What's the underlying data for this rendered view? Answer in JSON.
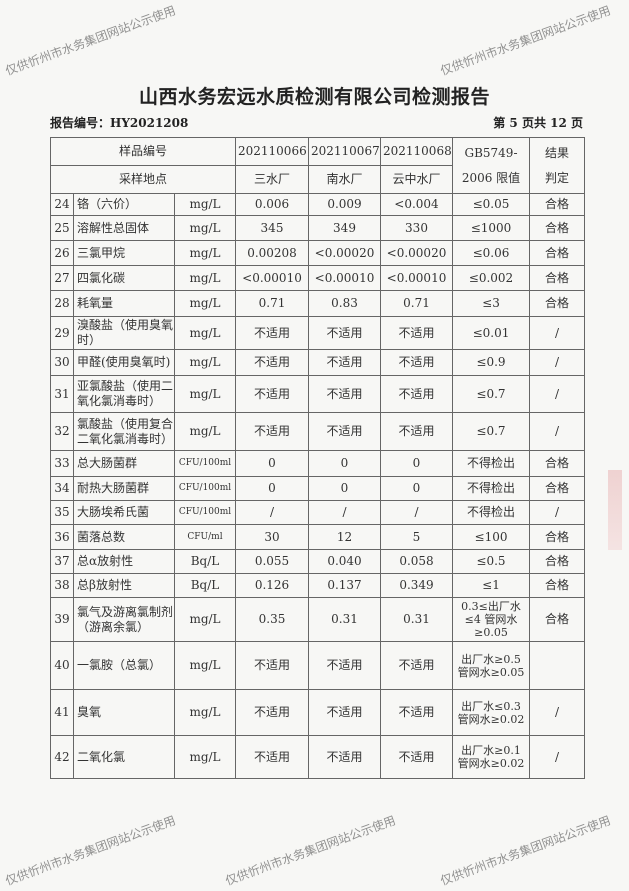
{
  "title": "山西水务宏远水质检测有限公司检测报告",
  "report_no": "报告编号：HY2021208",
  "page_info": "第 5 页共 12 页",
  "watermark": "仅供忻州市水务集团网站公示使用",
  "header": {
    "sample_no_label": "样品编号",
    "site_label": "采样地点",
    "samples": [
      "202110066",
      "202110067",
      "202110068"
    ],
    "sites": [
      "三水厂",
      "南水厂",
      "云中水厂"
    ],
    "limit_label_1": "GB5749-",
    "limit_label_2": "2006 限值",
    "result_label_1": "结果",
    "result_label_2": "判定"
  },
  "rows": [
    {
      "no": "24",
      "name": "铬（六价）",
      "unit": "mg/L",
      "v": [
        "0.006",
        "0.009",
        "<0.004"
      ],
      "limit": "≤0.05",
      "result": "合格"
    },
    {
      "no": "25",
      "name": "溶解性总固体",
      "unit": "mg/L",
      "v": [
        "345",
        "349",
        "330"
      ],
      "limit": "≤1000",
      "result": "合格"
    },
    {
      "no": "26",
      "name": "三氯甲烷",
      "unit": "mg/L",
      "v": [
        "0.00208",
        "<0.00020",
        "<0.00020"
      ],
      "limit": "≤0.06",
      "result": "合格"
    },
    {
      "no": "27",
      "name": "四氯化碳",
      "unit": "mg/L",
      "v": [
        "<0.00010",
        "<0.00010",
        "<0.00010"
      ],
      "limit": "≤0.002",
      "result": "合格"
    },
    {
      "no": "28",
      "name": "耗氧量",
      "unit": "mg/L",
      "v": [
        "0.71",
        "0.83",
        "0.71"
      ],
      "limit": "≤3",
      "result": "合格"
    },
    {
      "no": "29",
      "name": "溴酸盐（使用臭氧时）",
      "unit": "mg/L",
      "v": [
        "不适用",
        "不适用",
        "不适用"
      ],
      "limit": "≤0.01",
      "result": "/"
    },
    {
      "no": "30",
      "name": "甲醛(使用臭氧时)",
      "unit": "mg/L",
      "v": [
        "不适用",
        "不适用",
        "不适用"
      ],
      "limit": "≤0.9",
      "result": "/"
    },
    {
      "no": "31",
      "name": "亚氯酸盐（使用二氧化氯消毒时）",
      "unit": "mg/L",
      "v": [
        "不适用",
        "不适用",
        "不适用"
      ],
      "limit": "≤0.7",
      "result": "/"
    },
    {
      "no": "32",
      "name": "氯酸盐（使用复合二氧化氯消毒时）",
      "unit": "mg/L",
      "v": [
        "不适用",
        "不适用",
        "不适用"
      ],
      "limit": "≤0.7",
      "result": "/"
    },
    {
      "no": "33",
      "name": "总大肠菌群",
      "unit": "CFU/100ml",
      "v": [
        "0",
        "0",
        "0"
      ],
      "limit": "不得检出",
      "result": "合格"
    },
    {
      "no": "34",
      "name": "耐热大肠菌群",
      "unit": "CFU/100ml",
      "v": [
        "0",
        "0",
        "0"
      ],
      "limit": "不得检出",
      "result": "合格"
    },
    {
      "no": "35",
      "name": "大肠埃希氏菌",
      "unit": "CFU/100ml",
      "v": [
        "/",
        "/",
        "/"
      ],
      "limit": "不得检出",
      "result": "/"
    },
    {
      "no": "36",
      "name": "菌落总数",
      "unit": "CFU/ml",
      "v": [
        "30",
        "12",
        "5"
      ],
      "limit": "≤100",
      "result": "合格"
    },
    {
      "no": "37",
      "name": "总α放射性",
      "unit": "Bq/L",
      "v": [
        "0.055",
        "0.040",
        "0.058"
      ],
      "limit": "≤0.5",
      "result": "合格"
    },
    {
      "no": "38",
      "name": "总β放射性",
      "unit": "Bq/L",
      "v": [
        "0.126",
        "0.137",
        "0.349"
      ],
      "limit": "≤1",
      "result": "合格"
    },
    {
      "no": "39",
      "name": "氯气及游离氯制剂（游离余氯）",
      "unit": "mg/L",
      "v": [
        "0.35",
        "0.31",
        "0.31"
      ],
      "limit": "0.3≤出厂水≤4 管网水≥0.05",
      "result": "合格"
    },
    {
      "no": "40",
      "name": "一氯胺（总氯）",
      "unit": "mg/L",
      "v": [
        "不适用",
        "不适用",
        "不适用"
      ],
      "limit": "出厂水≥0.5 管网水≥0.05",
      "result": ""
    },
    {
      "no": "41",
      "name": "臭氧",
      "unit": "mg/L",
      "v": [
        "不适用",
        "不适用",
        "不适用"
      ],
      "limit": "出厂水≤0.3 管网水≥0.02",
      "result": "/"
    },
    {
      "no": "42",
      "name": "二氧化氯",
      "unit": "mg/L",
      "v": [
        "不适用",
        "不适用",
        "不适用"
      ],
      "limit": "出厂水≥0.1 管网水≥0.02",
      "result": "/"
    }
  ]
}
